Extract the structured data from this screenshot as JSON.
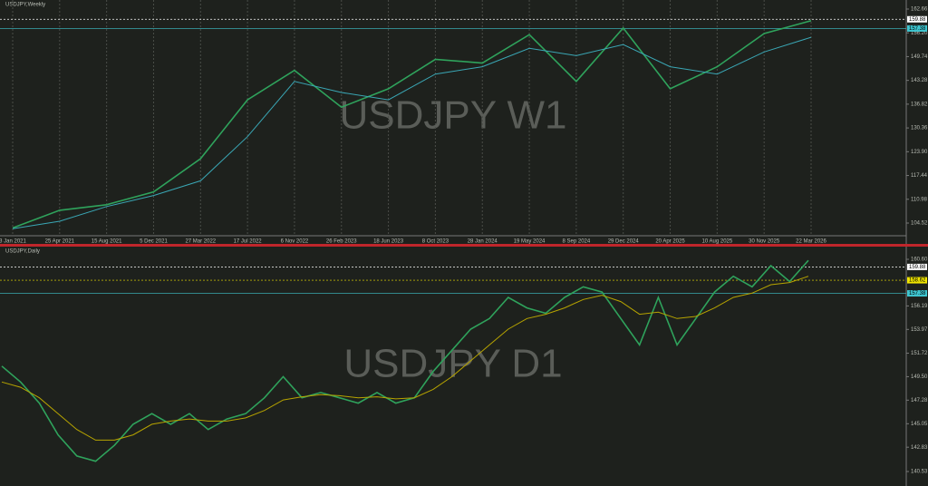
{
  "chart_data": [
    {
      "type": "line",
      "title": "USDJPY,Weekly",
      "watermark": "USDJPY W1",
      "categories": [
        "3 Jan 2021",
        "25 Apr 2021",
        "15 Aug 2021",
        "5 Dec 2021",
        "27 Mar 2022",
        "17 Jul 2022",
        "6 Nov 2022",
        "26 Feb 2023",
        "18 Jun 2023",
        "8 Oct 2023",
        "28 Jan 2024",
        "19 May 2024",
        "8 Sep 2024",
        "29 Dec 2024",
        "20 Apr 2025",
        "10 Aug 2025",
        "30 Nov 2025",
        "22 Mar 2026"
      ],
      "series": [
        {
          "color": "#2fa35c",
          "values": [
            103.2,
            108,
            109.5,
            113,
            122,
            138,
            146,
            136,
            141,
            149,
            148,
            155.7,
            143,
            157.5,
            141,
            147,
            156,
            159.5
          ]
        },
        {
          "color": "#3aa7b5",
          "values": [
            103,
            105,
            109,
            112,
            116,
            128,
            143,
            140,
            138,
            145,
            147,
            152,
            150,
            153,
            147,
            145,
            151,
            155
          ]
        }
      ],
      "ylim": [
        101.07,
        165.12
      ],
      "yticks": [
        104.52,
        110.98,
        117.44,
        {
          "value": 123.9,
          "label": "123.90"
        },
        130.36,
        136.82,
        143.28,
        149.74,
        {
          "value": 156.2,
          "label": "156.20"
        },
        162.66
      ],
      "levels": [
        {
          "value": 159.88,
          "color": "#ffffff"
        },
        {
          "value": 157.38,
          "color": "#3ec6d0"
        }
      ]
    },
    {
      "type": "line",
      "title": "USDJPY,Daily",
      "watermark": "USDJPY D1",
      "series": [
        {
          "color": "#2fa35c",
          "values": [
            150.5,
            149,
            147,
            144,
            142,
            141.5,
            143,
            145,
            146,
            145,
            146,
            144.5,
            145.5,
            146,
            147.5,
            149.5,
            147.5,
            148,
            147.5,
            147,
            148,
            147,
            147.5,
            150,
            152,
            154,
            155,
            157,
            156,
            155.5,
            157,
            158,
            157.5,
            155,
            152.5,
            157,
            152.5,
            155,
            157.5,
            159,
            158,
            160,
            158.5,
            160.5
          ]
        },
        {
          "color": "#b7a400",
          "values": [
            149,
            148.5,
            147.5,
            146,
            144.5,
            143.5,
            143.5,
            144,
            145,
            145.3,
            145.5,
            145.3,
            145.3,
            145.6,
            146.3,
            147.3,
            147.6,
            147.8,
            147.7,
            147.5,
            147.6,
            147.4,
            147.5,
            148.3,
            149.5,
            151,
            152.5,
            154,
            155,
            155.4,
            156,
            156.8,
            157.2,
            156.6,
            155.4,
            155.6,
            155,
            155.2,
            156,
            157,
            157.4,
            158.2,
            158.4,
            159
          ]
        }
      ],
      "ylim": [
        139.16,
        161.8
      ],
      "yticks": [
        140.53,
        142.83,
        145.05,
        147.28,
        {
          "value": 149.5,
          "label": "149.50"
        },
        151.72,
        153.97,
        156.19,
        {
          "value": 160.6,
          "label": "160.60"
        }
      ],
      "levels": [
        {
          "value": 159.88,
          "color": "#ffffff"
        },
        {
          "value": 158.62,
          "color": "#f2e600"
        },
        {
          "value": 157.38,
          "color": "#3ec6d0"
        }
      ]
    }
  ]
}
